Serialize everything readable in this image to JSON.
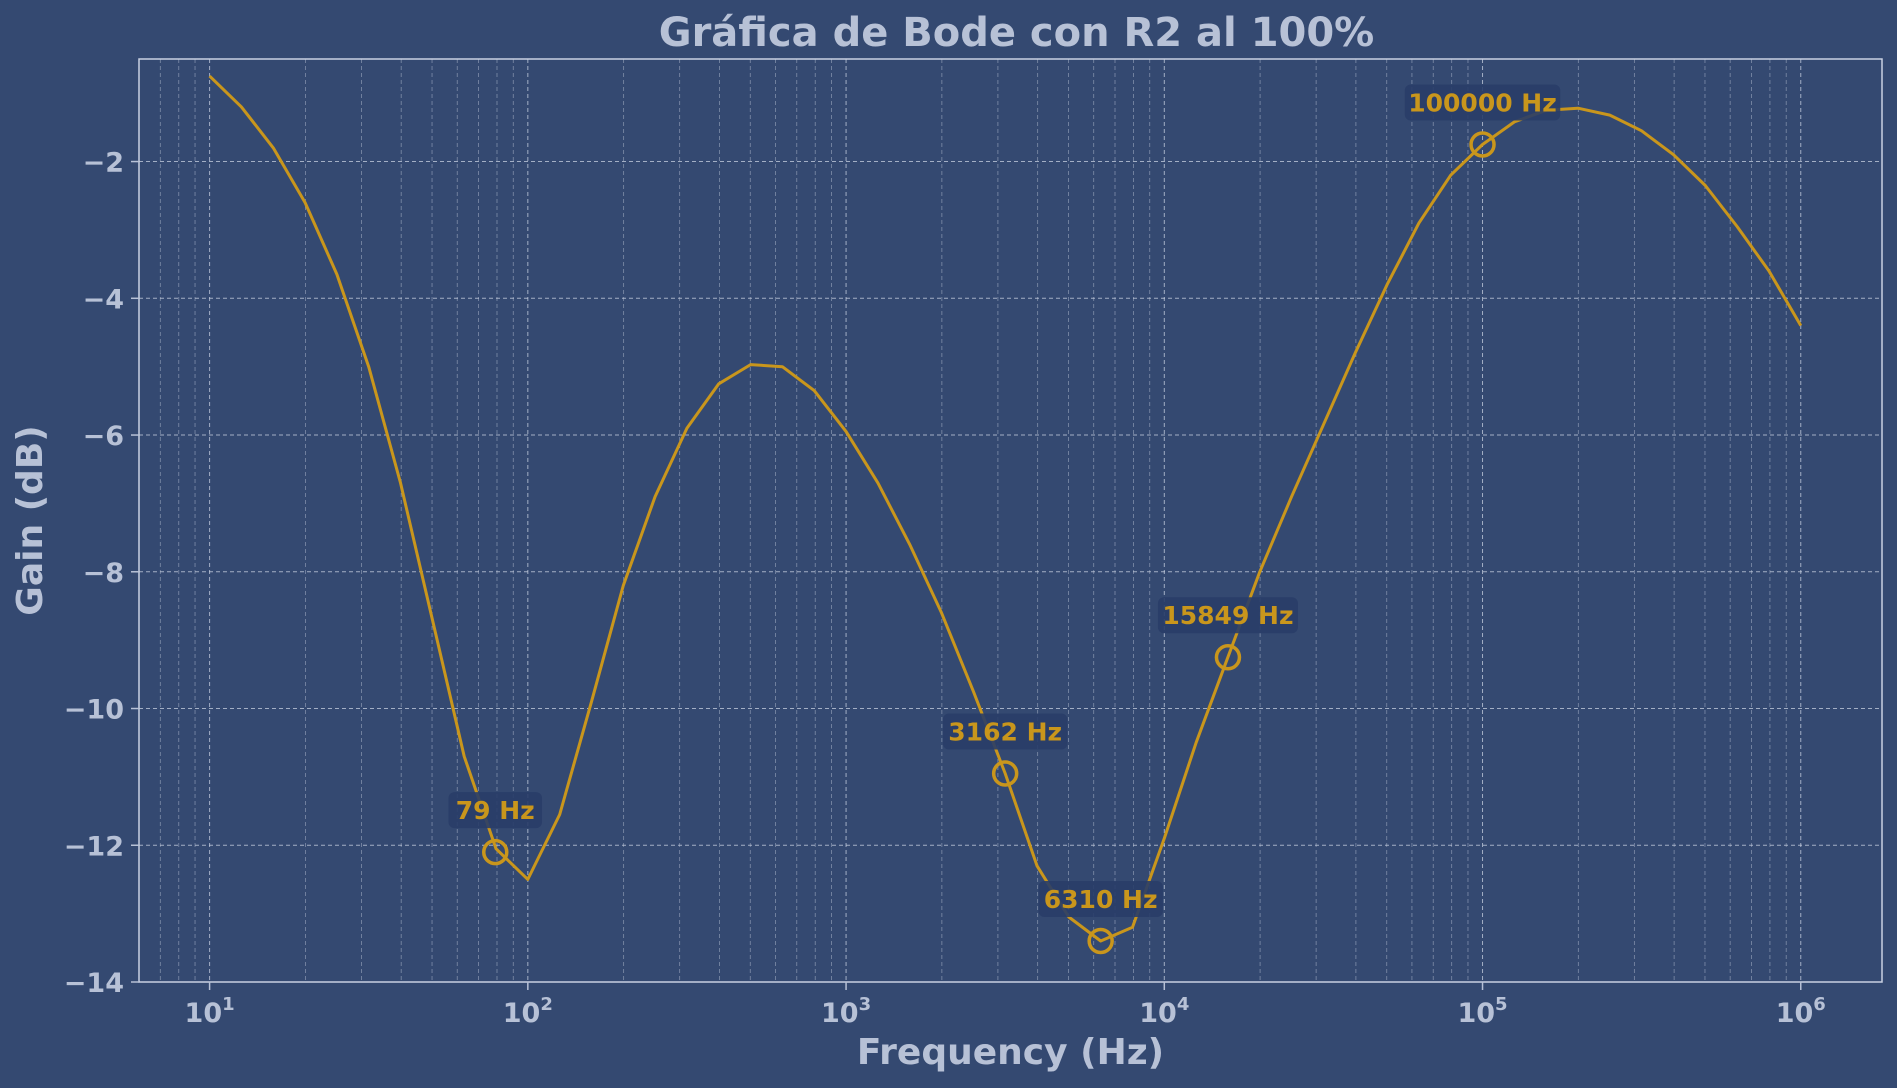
{
  "colors": {
    "background": "#344971",
    "text": "#b7c1d6",
    "grid": "#c9d1e2",
    "line": "#c9961c",
    "annotation_box": "#293d68"
  },
  "chart_data": {
    "type": "line",
    "title": "Gráfica de Bode con R2 al 100%",
    "xlabel": "Frequency (Hz)",
    "ylabel": "Gain (dB)",
    "xscale": "log",
    "xlim": [
      6,
      1800000
    ],
    "ylim": [
      -14,
      -0.5
    ],
    "grid": true,
    "x_ticks": [
      {
        "base": "10",
        "exp": "1",
        "value": 10
      },
      {
        "base": "10",
        "exp": "2",
        "value": 100
      },
      {
        "base": "10",
        "exp": "3",
        "value": 1000
      },
      {
        "base": "10",
        "exp": "4",
        "value": 10000
      },
      {
        "base": "10",
        "exp": "5",
        "value": 100000
      },
      {
        "base": "10",
        "exp": "6",
        "value": 1000000
      }
    ],
    "y_ticks": [
      {
        "label": "−2",
        "value": -2
      },
      {
        "label": "−4",
        "value": -4
      },
      {
        "label": "−6",
        "value": -6
      },
      {
        "label": "−8",
        "value": -8
      },
      {
        "label": "−10",
        "value": -10
      },
      {
        "label": "−12",
        "value": -12
      },
      {
        "label": "−14",
        "value": -14
      }
    ],
    "series": [
      {
        "x": [
          10,
          12.59,
          15.85,
          19.95,
          25.12,
          31.62,
          39.81,
          50.12,
          63.1,
          79.43,
          100,
          125.9,
          158.5,
          199.5,
          251.2,
          316.2,
          398.1,
          501.2,
          631,
          794.3,
          1000,
          1259,
          1585,
          1995,
          2512,
          3162,
          3981,
          5012,
          6310,
          7943,
          10000,
          12589,
          15849,
          19953,
          25119,
          31623,
          39811,
          50119,
          63096,
          79433,
          100000,
          125893,
          158489,
          199526,
          251189,
          316228,
          398107,
          501187,
          630957,
          794328,
          1000000
        ],
        "y": [
          -0.75,
          -1.2,
          -1.8,
          -2.6,
          -3.65,
          -5.0,
          -6.7,
          -8.7,
          -10.7,
          -12.05,
          -12.5,
          -11.55,
          -9.9,
          -8.2,
          -6.9,
          -5.9,
          -5.25,
          -4.97,
          -5.0,
          -5.35,
          -5.95,
          -6.7,
          -7.6,
          -8.6,
          -9.75,
          -10.95,
          -12.3,
          -13.05,
          -13.4,
          -13.2,
          -11.9,
          -10.5,
          -9.25,
          -8.0,
          -6.9,
          -5.85,
          -4.8,
          -3.8,
          -2.9,
          -2.2,
          -1.75,
          -1.42,
          -1.25,
          -1.22,
          -1.32,
          -1.55,
          -1.9,
          -2.35,
          -2.95,
          -3.6,
          -4.4
        ]
      }
    ],
    "markers": [
      {
        "label": "79 Hz",
        "x": 79,
        "y": -12.1
      },
      {
        "label": "3162 Hz",
        "x": 3162,
        "y": -10.95
      },
      {
        "label": "6310 Hz",
        "x": 6310,
        "y": -13.4
      },
      {
        "label": "15849 Hz",
        "x": 15849,
        "y": -9.25
      },
      {
        "label": "100000 Hz",
        "x": 100000,
        "y": -1.75
      }
    ]
  }
}
